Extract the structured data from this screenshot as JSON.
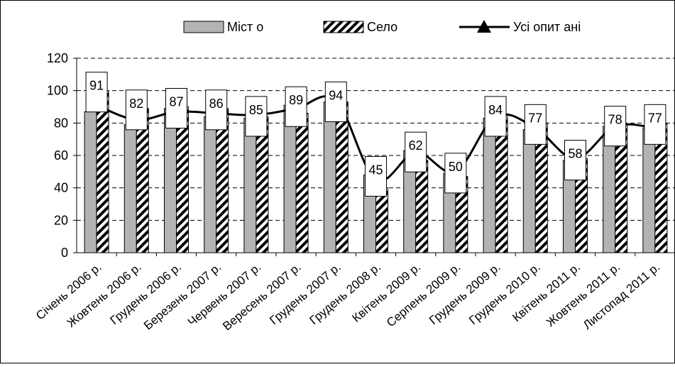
{
  "chart_data": {
    "type": "bar",
    "title": "",
    "xlabel": "",
    "ylabel": "",
    "ylim": [
      0,
      120
    ],
    "yticks": [
      0,
      20,
      40,
      60,
      80,
      100,
      120
    ],
    "grid": "horizontal-dashed",
    "legend_position": "top",
    "categories": [
      "Січень 2006 р.",
      "Жовтень 2006 р.",
      "Грудень 2006 р.",
      "Березень 2007 р.",
      "Червень 2007 р.",
      "Вересень 2007 р.",
      "Грудень 2007 р.",
      "Грудень 2008 р.",
      "Квітень 2009 р.",
      "Серпень 2009 р.",
      "Грудень 2009 р.",
      "Грудень 2010 р.",
      "Квітень 2011 р.",
      "Жовтень 2011 р.",
      "Листопад 2011 р."
    ],
    "series": [
      {
        "name": "Міст о",
        "kind": "bar",
        "style": "gray",
        "color": "#b3b3b3",
        "values": [
          87,
          79,
          89,
          84,
          83,
          91,
          93,
          48,
          63,
          49,
          83,
          76,
          57,
          78,
          77
        ]
      },
      {
        "name": "Село",
        "kind": "bar",
        "style": "hatched",
        "color": "#000000",
        "values": [
          100,
          89,
          90,
          89,
          84,
          86,
          93,
          40,
          57,
          47,
          85,
          80,
          58,
          79,
          80
        ]
      },
      {
        "name": "Усі опит ані",
        "kind": "line",
        "marker": "triangle",
        "color": "#000000",
        "values": [
          91,
          82,
          87,
          86,
          85,
          89,
          94,
          45,
          62,
          50,
          84,
          77,
          58,
          78,
          77
        ]
      }
    ],
    "data_labels": [
      "91",
      "82",
      "87",
      "86",
      "85",
      "89",
      "94",
      "45",
      "62",
      "50",
      "84",
      "77",
      "58",
      "78",
      "77"
    ]
  }
}
